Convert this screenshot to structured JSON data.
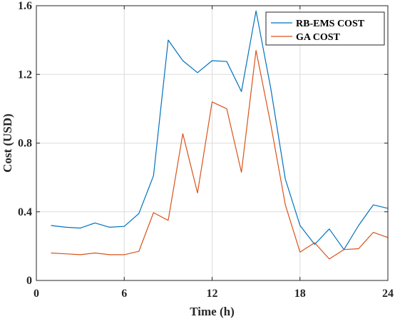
{
  "chart_data": {
    "type": "line",
    "xlabel": "Time (h)",
    "ylabel": "Cost (USD)",
    "xlim": [
      0,
      24
    ],
    "ylim": [
      0,
      1.6
    ],
    "xticks": [
      0,
      6,
      12,
      18,
      24
    ],
    "yticks": [
      0,
      0.4,
      0.8,
      1.2,
      1.6
    ],
    "xtick_labels": [
      "0",
      "6",
      "12",
      "18",
      "24"
    ],
    "ytick_labels": [
      "0",
      "0.4",
      "0.8",
      "1.2",
      "1.6"
    ],
    "grid": true,
    "legend_position": "top-right",
    "x": [
      1,
      2,
      3,
      4,
      5,
      6,
      7,
      8,
      9,
      10,
      11,
      12,
      13,
      14,
      15,
      16,
      17,
      18,
      19,
      20,
      21,
      22,
      23,
      24
    ],
    "series": [
      {
        "name": "RB-EMS COST",
        "color": "#0072BD",
        "values": [
          0.32,
          0.31,
          0.305,
          0.335,
          0.31,
          0.315,
          0.39,
          0.61,
          1.4,
          1.28,
          1.21,
          1.28,
          1.275,
          1.1,
          1.57,
          1.12,
          0.59,
          0.32,
          0.21,
          0.3,
          0.18,
          0.32,
          0.44,
          0.42
        ]
      },
      {
        "name": "GA COST",
        "color": "#D95319",
        "values": [
          0.16,
          0.155,
          0.15,
          0.16,
          0.15,
          0.15,
          0.17,
          0.395,
          0.35,
          0.855,
          0.51,
          1.04,
          1.0,
          0.63,
          1.34,
          0.91,
          0.44,
          0.165,
          0.22,
          0.125,
          0.18,
          0.185,
          0.28,
          0.25
        ]
      }
    ]
  }
}
